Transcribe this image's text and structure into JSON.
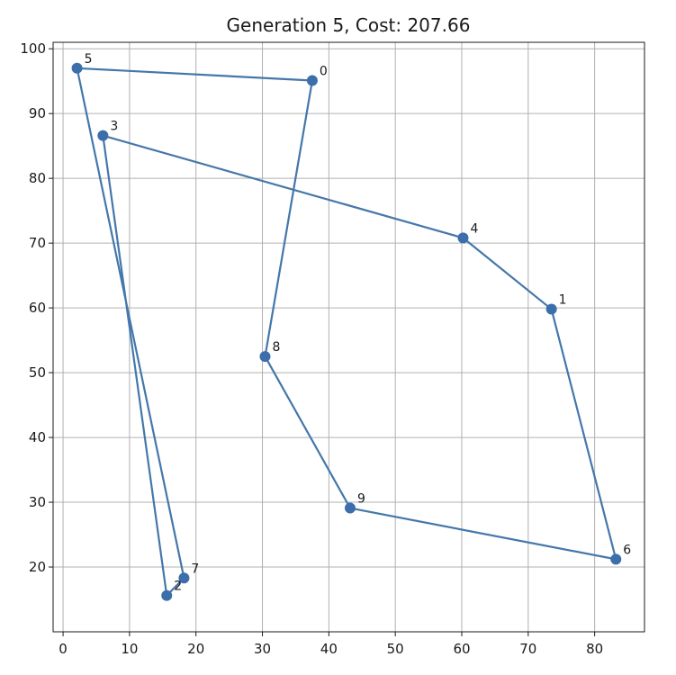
{
  "chart_data": {
    "type": "line",
    "title": "Generation 5, Cost: 207.66",
    "xlabel": "",
    "ylabel": "",
    "xlim": [
      -1.5,
      87.5
    ],
    "ylim": [
      10,
      101
    ],
    "xticks": [
      0,
      10,
      20,
      30,
      40,
      50,
      60,
      70,
      80
    ],
    "yticks": [
      20,
      30,
      40,
      50,
      60,
      70,
      80,
      90,
      100
    ],
    "grid": true,
    "series": [
      {
        "points": [
          {
            "label": "0",
            "x": 37.5,
            "y": 95.1
          },
          {
            "label": "1",
            "x": 73.5,
            "y": 59.8
          },
          {
            "label": "2",
            "x": 15.6,
            "y": 15.6
          },
          {
            "label": "3",
            "x": 6.0,
            "y": 86.6
          },
          {
            "label": "4",
            "x": 60.2,
            "y": 70.8
          },
          {
            "label": "5",
            "x": 2.1,
            "y": 97.0
          },
          {
            "label": "6",
            "x": 83.2,
            "y": 21.2
          },
          {
            "label": "7",
            "x": 18.2,
            "y": 18.3
          },
          {
            "label": "8",
            "x": 30.4,
            "y": 52.5
          },
          {
            "label": "9",
            "x": 43.2,
            "y": 29.1
          }
        ],
        "route": [
          "0",
          "8",
          "9",
          "6",
          "1",
          "4",
          "3",
          "2",
          "7",
          "5",
          "0"
        ]
      }
    ],
    "colors": {
      "line": "#4477aa",
      "marker": "#3b6eab"
    }
  }
}
